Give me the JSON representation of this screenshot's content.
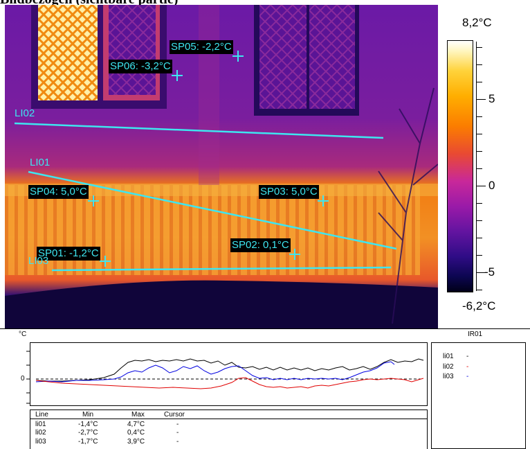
{
  "header": {
    "title": "Bildbezogen (sichtbare partie)"
  },
  "thermal_image": {
    "spots": [
      {
        "label": "SP05: -2,2°C"
      },
      {
        "label": "SP06: -3,2°C"
      },
      {
        "label": "SP04: 5,0°C"
      },
      {
        "label": "SP03: 5,0°C"
      },
      {
        "label": "SP01: -1,2°C"
      },
      {
        "label": "SP02: 0,1°C"
      }
    ],
    "lines": [
      {
        "label": "LI02"
      },
      {
        "label": "LI01"
      },
      {
        "label": "LI03"
      }
    ],
    "marker_color": "#3ee6f0"
  },
  "scale": {
    "max_label": "8,2°C",
    "min_label": "-6,2°C",
    "ticks": [
      "5",
      "0",
      "-5"
    ]
  },
  "profile_chart": {
    "unit_label": "°C",
    "image_label": "IR01",
    "zero_label": "0",
    "legend": [
      {
        "name": "li01",
        "mark": "-",
        "color": "#000000"
      },
      {
        "name": "li02",
        "mark": "-",
        "color": "#e00000"
      },
      {
        "name": "li03",
        "mark": "-",
        "color": "#0000e0"
      }
    ]
  },
  "stats_table": {
    "headers": [
      "Line",
      "Min",
      "Max",
      "Cursor"
    ],
    "rows": [
      [
        "li01",
        "-1,4°C",
        "4,7°C",
        "-"
      ],
      [
        "li02",
        "-2,7°C",
        "0,4°C",
        "-"
      ],
      [
        "li03",
        "-1,7°C",
        "3,9°C",
        "-"
      ]
    ]
  }
}
